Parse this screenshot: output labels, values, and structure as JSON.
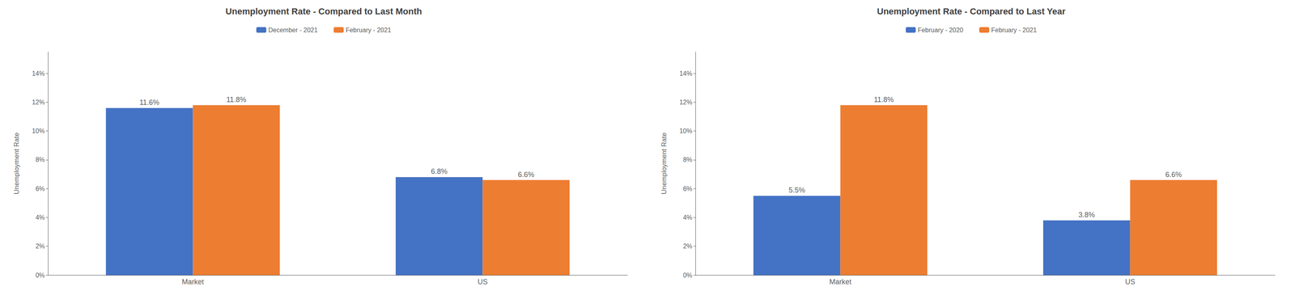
{
  "chart_data": [
    {
      "type": "bar",
      "title": "Unemployment Rate - Compared to Last Month",
      "categories": [
        "Market",
        "US"
      ],
      "series": [
        {
          "name": "December - 2021",
          "color": "#4472C4",
          "values": [
            0.116,
            0.068
          ],
          "value_labels": [
            "11.6%",
            "6.8%"
          ]
        },
        {
          "name": "February - 2021",
          "color": "#ED7D31",
          "values": [
            0.118,
            0.066
          ],
          "value_labels": [
            "11.8%",
            "6.6%"
          ]
        }
      ],
      "ylabel": "Unemployment Rate",
      "ylim": [
        0,
        0.155
      ],
      "yticks": [
        {
          "value": 0,
          "label": "0%"
        },
        {
          "value": 0.02,
          "label": "2%"
        },
        {
          "value": 0.04,
          "label": "4%"
        },
        {
          "value": 0.06,
          "label": "6%"
        },
        {
          "value": 0.08,
          "label": "8%"
        },
        {
          "value": 0.1,
          "label": "10%"
        },
        {
          "value": 0.12,
          "label": "12%"
        },
        {
          "value": 0.14,
          "label": "14%"
        }
      ],
      "grid": false,
      "legend": "upper center",
      "data_labels": true
    },
    {
      "type": "bar",
      "title": "Unemployment Rate - Compared to Last Year",
      "categories": [
        "Market",
        "US"
      ],
      "series": [
        {
          "name": "February - 2020",
          "color": "#4472C4",
          "values": [
            0.055,
            0.038
          ],
          "value_labels": [
            "5.5%",
            "3.8%"
          ]
        },
        {
          "name": "February - 2021",
          "color": "#ED7D31",
          "values": [
            0.118,
            0.066
          ],
          "value_labels": [
            "11.8%",
            "6.6%"
          ]
        }
      ],
      "ylabel": "Unemployment Rate",
      "ylim": [
        0,
        0.155
      ],
      "yticks": [
        {
          "value": 0,
          "label": "0%"
        },
        {
          "value": 0.02,
          "label": "2%"
        },
        {
          "value": 0.04,
          "label": "4%"
        },
        {
          "value": 0.06,
          "label": "6%"
        },
        {
          "value": 0.08,
          "label": "8%"
        },
        {
          "value": 0.1,
          "label": "10%"
        },
        {
          "value": 0.12,
          "label": "12%"
        },
        {
          "value": 0.14,
          "label": "14%"
        }
      ],
      "grid": false,
      "legend": "upper center",
      "data_labels": true
    }
  ]
}
